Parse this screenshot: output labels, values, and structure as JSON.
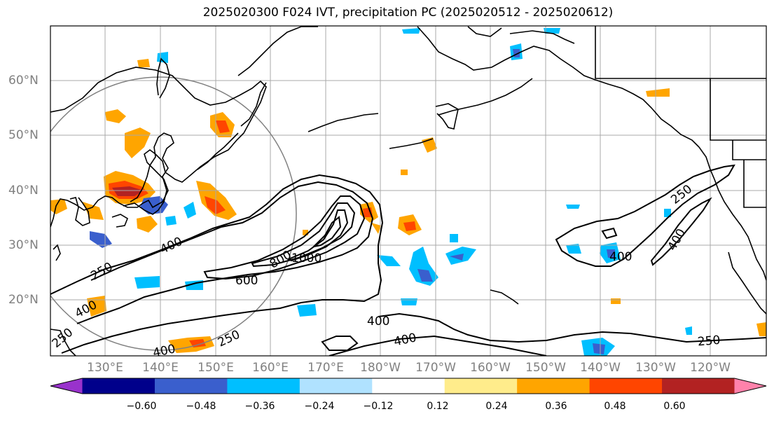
{
  "title": "2025020300 F024 IVT, precipitation PC (2025020512 - 2025020612)",
  "lat_labels": [
    "20°N",
    "30°N",
    "40°N",
    "50°N",
    "60°N"
  ],
  "lon_labels": [
    "130°E",
    "140°E",
    "150°E",
    "160°E",
    "170°E",
    "180°W",
    "170°W",
    "160°W",
    "150°W",
    "140°W",
    "130°W",
    "120°W"
  ],
  "ivt_contour_labels": [
    "250",
    "400",
    "600",
    "800",
    "1000",
    "400",
    "250",
    "400",
    "250",
    "400",
    "400",
    "250",
    "400",
    "400",
    "250"
  ],
  "colorbar": {
    "ticks": [
      "−0.60",
      "−0.48",
      "−0.36",
      "−0.24",
      "−0.12",
      "0.12",
      "0.24",
      "0.36",
      "0.48",
      "0.60"
    ],
    "colors": [
      "#9932cc",
      "#00008b",
      "#3a5fcd",
      "#00bfff",
      "#b0e2ff",
      "#ffffff",
      "#ffec8b",
      "#ffa500",
      "#ff4500",
      "#b22222",
      "#ff82ab"
    ]
  }
}
